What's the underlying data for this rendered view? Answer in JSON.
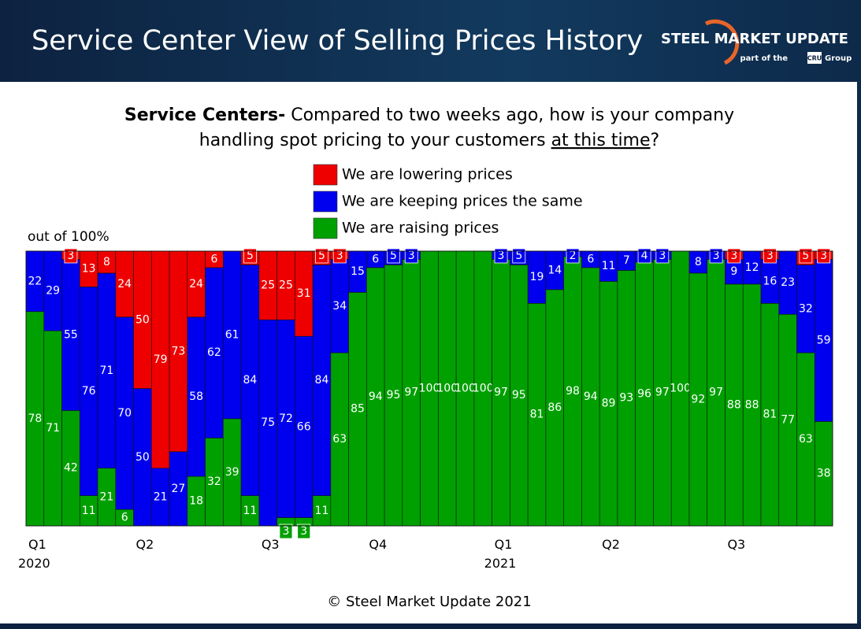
{
  "header": {
    "title": "Service Center View of Selling Prices History",
    "logo": "STEEL MARKET UPDATE",
    "logo_sub": "part of the",
    "logo_cru": "CRU",
    "logo_group": "Group"
  },
  "chart_data": {
    "type": "stacked_bar",
    "title_bold": "Service Centers-",
    "title_line1": "Compared to two weeks ago, how is your company",
    "title_line2": "handling spot pricing to your customers",
    "title_underlined": "at this time",
    "title_end": "?",
    "ylabel": "out of 100%",
    "ylim": [
      0,
      100
    ],
    "categories": [
      "Q1\n2020",
      null,
      null,
      null,
      null,
      null,
      "Q2",
      null,
      null,
      null,
      null,
      null,
      null,
      "Q3",
      null,
      null,
      null,
      null,
      null,
      "Q4",
      null,
      null,
      null,
      null,
      null,
      null,
      "Q1\n2021",
      null,
      null,
      null,
      null,
      null,
      "Q2",
      null,
      null,
      null,
      null,
      null,
      null,
      "Q3",
      null,
      null,
      null,
      null,
      null
    ],
    "series": [
      {
        "name": "We are raising prices",
        "color": "#00a000",
        "values": [
          78,
          71,
          42,
          11,
          21,
          6,
          0,
          0,
          0,
          18,
          32,
          39,
          11,
          0,
          3,
          3,
          11,
          63,
          85,
          94,
          95,
          97,
          100,
          100,
          100,
          100,
          97,
          95,
          81,
          86,
          98,
          94,
          89,
          93,
          96,
          97,
          100,
          92,
          97,
          88,
          88,
          81,
          77,
          63,
          38
        ]
      },
      {
        "name": "We are keeping prices the same",
        "color": "#0000ee",
        "values": [
          22,
          29,
          55,
          76,
          71,
          70,
          50,
          21,
          27,
          58,
          62,
          61,
          84,
          75,
          72,
          66,
          84,
          34,
          15,
          6,
          5,
          3,
          0,
          0,
          0,
          0,
          3,
          5,
          19,
          14,
          2,
          6,
          11,
          7,
          4,
          3,
          0,
          8,
          3,
          9,
          12,
          16,
          23,
          32,
          59
        ]
      },
      {
        "name": "We are lowering prices",
        "color": "#ee0000",
        "values": [
          0,
          0,
          3,
          13,
          8,
          24,
          50,
          79,
          73,
          24,
          6,
          0,
          5,
          25,
          25,
          31,
          5,
          3,
          0,
          0,
          0,
          0,
          0,
          0,
          0,
          0,
          0,
          0,
          0,
          0,
          0,
          0,
          0,
          0,
          0,
          0,
          0,
          0,
          0,
          3,
          0,
          3,
          0,
          5,
          3
        ]
      }
    ]
  },
  "footer": "© Steel Market Update 2021"
}
